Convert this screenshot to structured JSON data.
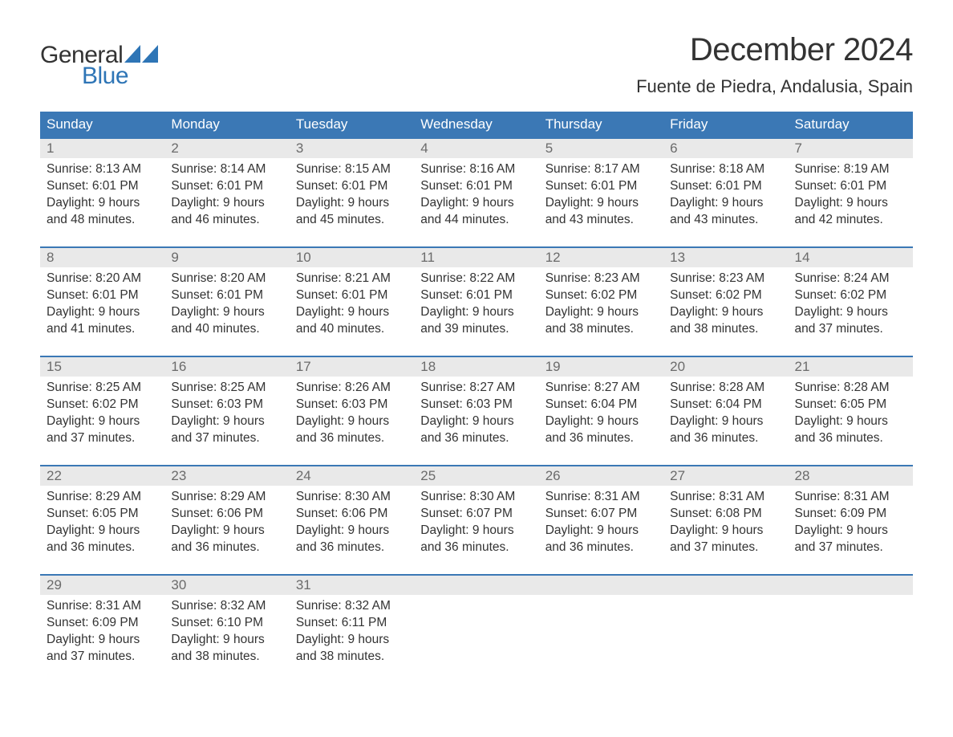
{
  "header": {
    "logo_text_top": "General",
    "logo_text_bottom": "Blue",
    "title": "December 2024",
    "location": "Fuente de Piedra, Andalusia, Spain"
  },
  "colors": {
    "header_bg": "#3b78b5",
    "header_text": "#ffffff",
    "daynum_bg": "#e9e9e9",
    "daynum_text": "#6b6b6b",
    "body_text": "#333333",
    "accent_blue": "#2e75b6",
    "page_bg": "#ffffff"
  },
  "typography": {
    "title_fontsize": 40,
    "location_fontsize": 22,
    "weekday_fontsize": 17,
    "daynum_fontsize": 17,
    "body_fontsize": 15.5,
    "logo_fontsize": 30
  },
  "structure": {
    "type": "calendar",
    "columns": 7,
    "rows": 5
  },
  "weekdays": [
    "Sunday",
    "Monday",
    "Tuesday",
    "Wednesday",
    "Thursday",
    "Friday",
    "Saturday"
  ],
  "weeks": [
    [
      {
        "num": "1",
        "sunrise": "Sunrise: 8:13 AM",
        "sunset": "Sunset: 6:01 PM",
        "daylight1": "Daylight: 9 hours",
        "daylight2": "and 48 minutes."
      },
      {
        "num": "2",
        "sunrise": "Sunrise: 8:14 AM",
        "sunset": "Sunset: 6:01 PM",
        "daylight1": "Daylight: 9 hours",
        "daylight2": "and 46 minutes."
      },
      {
        "num": "3",
        "sunrise": "Sunrise: 8:15 AM",
        "sunset": "Sunset: 6:01 PM",
        "daylight1": "Daylight: 9 hours",
        "daylight2": "and 45 minutes."
      },
      {
        "num": "4",
        "sunrise": "Sunrise: 8:16 AM",
        "sunset": "Sunset: 6:01 PM",
        "daylight1": "Daylight: 9 hours",
        "daylight2": "and 44 minutes."
      },
      {
        "num": "5",
        "sunrise": "Sunrise: 8:17 AM",
        "sunset": "Sunset: 6:01 PM",
        "daylight1": "Daylight: 9 hours",
        "daylight2": "and 43 minutes."
      },
      {
        "num": "6",
        "sunrise": "Sunrise: 8:18 AM",
        "sunset": "Sunset: 6:01 PM",
        "daylight1": "Daylight: 9 hours",
        "daylight2": "and 43 minutes."
      },
      {
        "num": "7",
        "sunrise": "Sunrise: 8:19 AM",
        "sunset": "Sunset: 6:01 PM",
        "daylight1": "Daylight: 9 hours",
        "daylight2": "and 42 minutes."
      }
    ],
    [
      {
        "num": "8",
        "sunrise": "Sunrise: 8:20 AM",
        "sunset": "Sunset: 6:01 PM",
        "daylight1": "Daylight: 9 hours",
        "daylight2": "and 41 minutes."
      },
      {
        "num": "9",
        "sunrise": "Sunrise: 8:20 AM",
        "sunset": "Sunset: 6:01 PM",
        "daylight1": "Daylight: 9 hours",
        "daylight2": "and 40 minutes."
      },
      {
        "num": "10",
        "sunrise": "Sunrise: 8:21 AM",
        "sunset": "Sunset: 6:01 PM",
        "daylight1": "Daylight: 9 hours",
        "daylight2": "and 40 minutes."
      },
      {
        "num": "11",
        "sunrise": "Sunrise: 8:22 AM",
        "sunset": "Sunset: 6:01 PM",
        "daylight1": "Daylight: 9 hours",
        "daylight2": "and 39 minutes."
      },
      {
        "num": "12",
        "sunrise": "Sunrise: 8:23 AM",
        "sunset": "Sunset: 6:02 PM",
        "daylight1": "Daylight: 9 hours",
        "daylight2": "and 38 minutes."
      },
      {
        "num": "13",
        "sunrise": "Sunrise: 8:23 AM",
        "sunset": "Sunset: 6:02 PM",
        "daylight1": "Daylight: 9 hours",
        "daylight2": "and 38 minutes."
      },
      {
        "num": "14",
        "sunrise": "Sunrise: 8:24 AM",
        "sunset": "Sunset: 6:02 PM",
        "daylight1": "Daylight: 9 hours",
        "daylight2": "and 37 minutes."
      }
    ],
    [
      {
        "num": "15",
        "sunrise": "Sunrise: 8:25 AM",
        "sunset": "Sunset: 6:02 PM",
        "daylight1": "Daylight: 9 hours",
        "daylight2": "and 37 minutes."
      },
      {
        "num": "16",
        "sunrise": "Sunrise: 8:25 AM",
        "sunset": "Sunset: 6:03 PM",
        "daylight1": "Daylight: 9 hours",
        "daylight2": "and 37 minutes."
      },
      {
        "num": "17",
        "sunrise": "Sunrise: 8:26 AM",
        "sunset": "Sunset: 6:03 PM",
        "daylight1": "Daylight: 9 hours",
        "daylight2": "and 36 minutes."
      },
      {
        "num": "18",
        "sunrise": "Sunrise: 8:27 AM",
        "sunset": "Sunset: 6:03 PM",
        "daylight1": "Daylight: 9 hours",
        "daylight2": "and 36 minutes."
      },
      {
        "num": "19",
        "sunrise": "Sunrise: 8:27 AM",
        "sunset": "Sunset: 6:04 PM",
        "daylight1": "Daylight: 9 hours",
        "daylight2": "and 36 minutes."
      },
      {
        "num": "20",
        "sunrise": "Sunrise: 8:28 AM",
        "sunset": "Sunset: 6:04 PM",
        "daylight1": "Daylight: 9 hours",
        "daylight2": "and 36 minutes."
      },
      {
        "num": "21",
        "sunrise": "Sunrise: 8:28 AM",
        "sunset": "Sunset: 6:05 PM",
        "daylight1": "Daylight: 9 hours",
        "daylight2": "and 36 minutes."
      }
    ],
    [
      {
        "num": "22",
        "sunrise": "Sunrise: 8:29 AM",
        "sunset": "Sunset: 6:05 PM",
        "daylight1": "Daylight: 9 hours",
        "daylight2": "and 36 minutes."
      },
      {
        "num": "23",
        "sunrise": "Sunrise: 8:29 AM",
        "sunset": "Sunset: 6:06 PM",
        "daylight1": "Daylight: 9 hours",
        "daylight2": "and 36 minutes."
      },
      {
        "num": "24",
        "sunrise": "Sunrise: 8:30 AM",
        "sunset": "Sunset: 6:06 PM",
        "daylight1": "Daylight: 9 hours",
        "daylight2": "and 36 minutes."
      },
      {
        "num": "25",
        "sunrise": "Sunrise: 8:30 AM",
        "sunset": "Sunset: 6:07 PM",
        "daylight1": "Daylight: 9 hours",
        "daylight2": "and 36 minutes."
      },
      {
        "num": "26",
        "sunrise": "Sunrise: 8:31 AM",
        "sunset": "Sunset: 6:07 PM",
        "daylight1": "Daylight: 9 hours",
        "daylight2": "and 36 minutes."
      },
      {
        "num": "27",
        "sunrise": "Sunrise: 8:31 AM",
        "sunset": "Sunset: 6:08 PM",
        "daylight1": "Daylight: 9 hours",
        "daylight2": "and 37 minutes."
      },
      {
        "num": "28",
        "sunrise": "Sunrise: 8:31 AM",
        "sunset": "Sunset: 6:09 PM",
        "daylight1": "Daylight: 9 hours",
        "daylight2": "and 37 minutes."
      }
    ],
    [
      {
        "num": "29",
        "sunrise": "Sunrise: 8:31 AM",
        "sunset": "Sunset: 6:09 PM",
        "daylight1": "Daylight: 9 hours",
        "daylight2": "and 37 minutes."
      },
      {
        "num": "30",
        "sunrise": "Sunrise: 8:32 AM",
        "sunset": "Sunset: 6:10 PM",
        "daylight1": "Daylight: 9 hours",
        "daylight2": "and 38 minutes."
      },
      {
        "num": "31",
        "sunrise": "Sunrise: 8:32 AM",
        "sunset": "Sunset: 6:11 PM",
        "daylight1": "Daylight: 9 hours",
        "daylight2": "and 38 minutes."
      },
      {
        "empty": true
      },
      {
        "empty": true
      },
      {
        "empty": true
      },
      {
        "empty": true
      }
    ]
  ]
}
